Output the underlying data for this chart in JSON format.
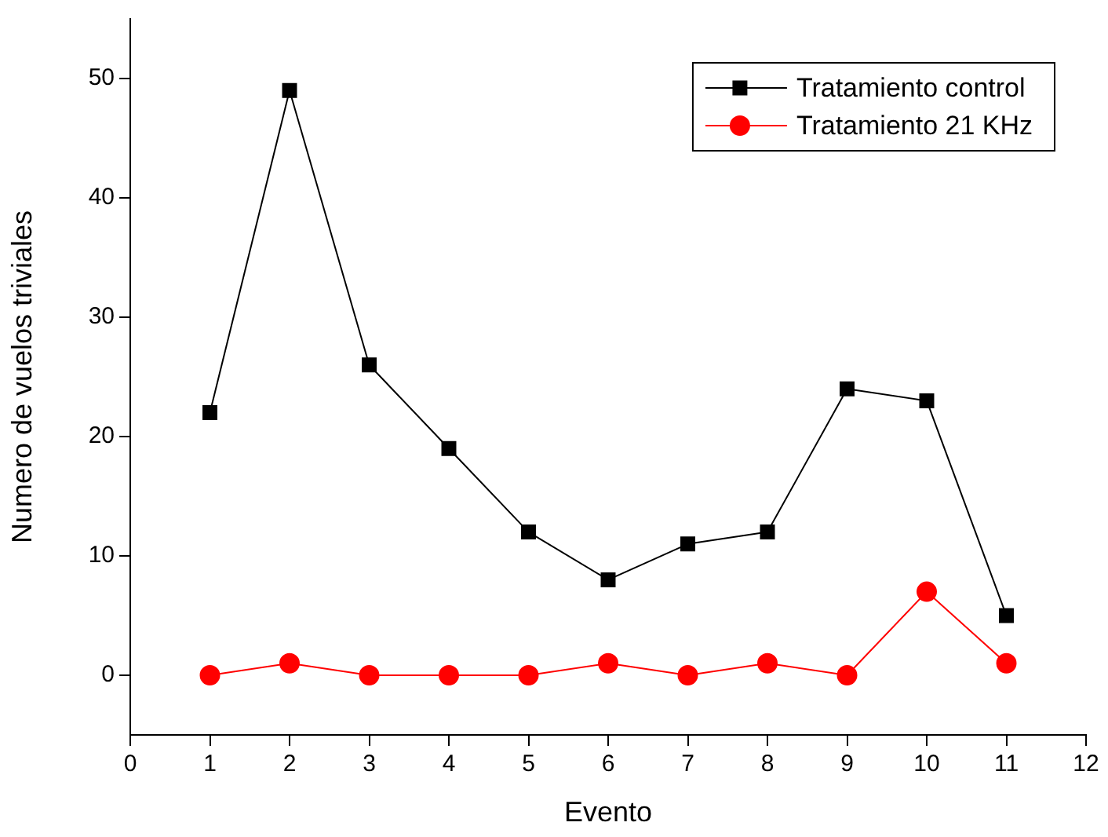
{
  "chart_data": {
    "type": "line",
    "xlabel": "Evento",
    "ylabel": "Numero de vuelos triviales",
    "x": [
      1,
      2,
      3,
      4,
      5,
      6,
      7,
      8,
      9,
      10,
      11
    ],
    "series": [
      {
        "name": "Tratamiento control",
        "color": "#000000",
        "marker": "square",
        "values": [
          22,
          49,
          26,
          19,
          12,
          8,
          11,
          12,
          24,
          23,
          5
        ]
      },
      {
        "name": "Tratamiento 21 KHz",
        "color": "#ff0000",
        "marker": "circle",
        "values": [
          0,
          1,
          0,
          0,
          0,
          1,
          0,
          1,
          0,
          7,
          1
        ]
      }
    ],
    "xlim": [
      0,
      12
    ],
    "xticks": [
      0,
      1,
      2,
      3,
      4,
      5,
      6,
      7,
      8,
      9,
      10,
      11,
      12
    ],
    "ylim": [
      -5,
      55
    ],
    "yticks": [
      0,
      10,
      20,
      30,
      40,
      50
    ],
    "grid": false,
    "legend": "top right",
    "line_style": "solid"
  }
}
